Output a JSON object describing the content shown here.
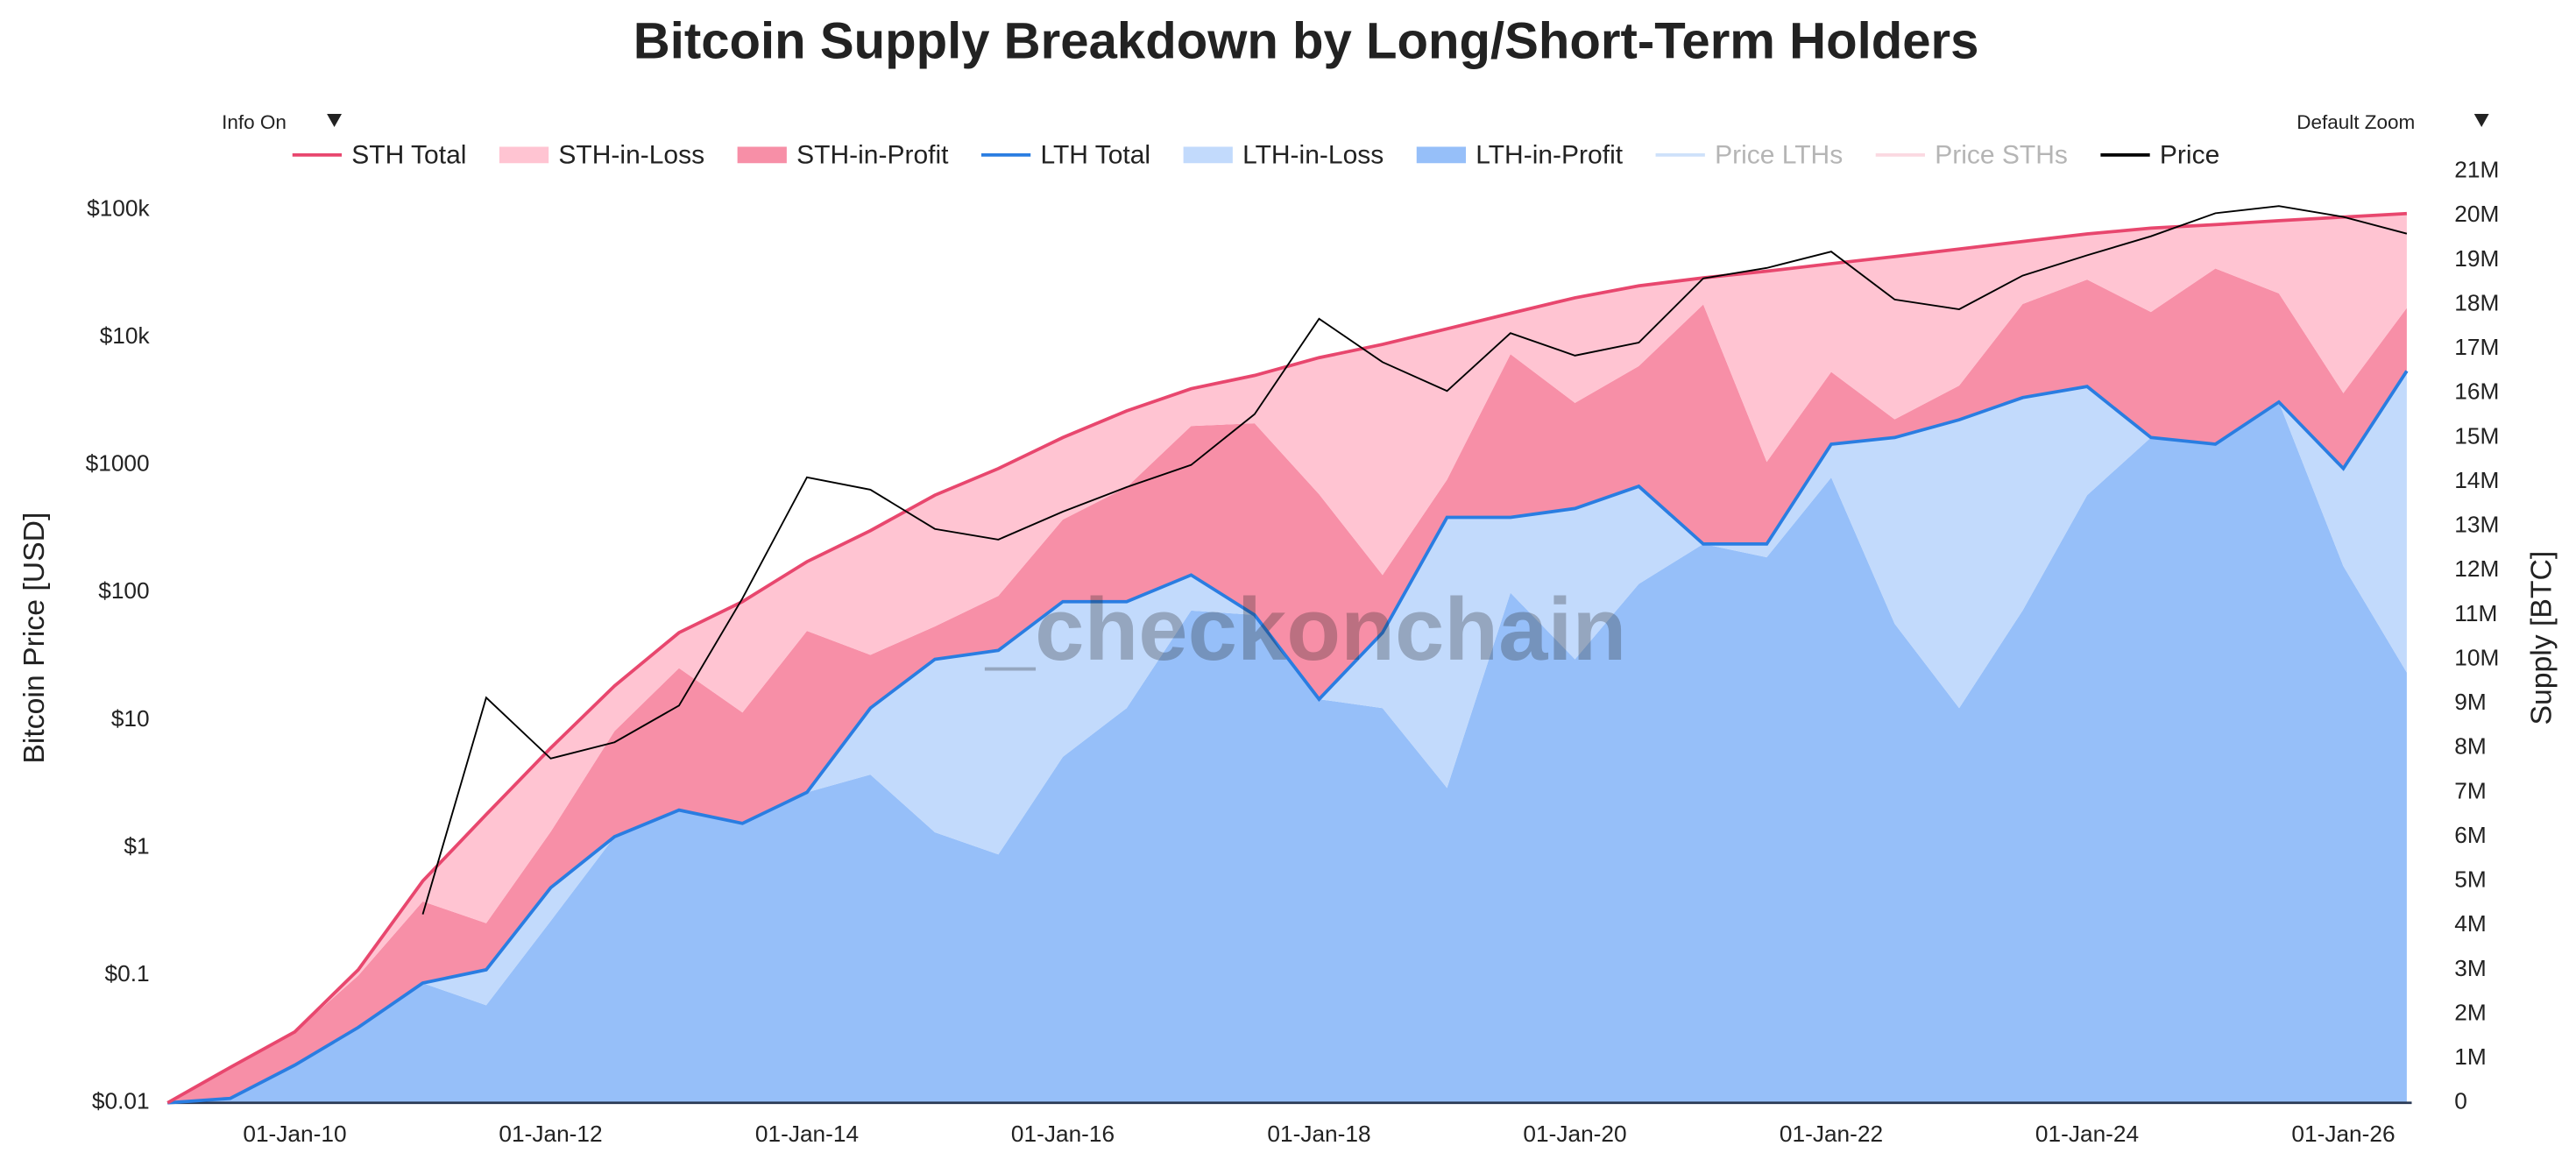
{
  "chart_data": {
    "type": "stacked-area",
    "title": "Bitcoin Supply Breakdown by Long/Short-Term Holders",
    "y_label": "Bitcoin Price [USD]",
    "y2_label": "Supply [BTC]",
    "watermark": "_checkonchain",
    "controls": {
      "info": "Info On",
      "zoom": "Default Zoom"
    },
    "x": [
      "2009-01-03",
      "2009-07-01",
      "2010-01-01",
      "2010-07-01",
      "2011-01-01",
      "2011-07-01",
      "2012-01-01",
      "2012-07-01",
      "2013-01-01",
      "2013-07-01",
      "2014-01-01",
      "2014-07-01",
      "2015-01-01",
      "2015-07-01",
      "2016-01-01",
      "2016-07-01",
      "2017-01-01",
      "2017-07-01",
      "2018-01-01",
      "2018-07-01",
      "2019-01-01",
      "2019-07-01",
      "2020-01-01",
      "2020-07-01",
      "2021-01-01",
      "2021-07-01",
      "2022-01-01",
      "2022-07-01",
      "2023-01-01",
      "2023-07-01",
      "2024-01-01",
      "2024-07-01",
      "2025-01-01",
      "2025-07-01",
      "2026-01-01",
      "2026-07-01"
    ],
    "xlim": [
      "2009-01-03",
      "2026-07-15"
    ],
    "xticks": [
      {
        "value": "2010-01-01",
        "label": "01-Jan-10"
      },
      {
        "value": "2012-01-01",
        "label": "01-Jan-12"
      },
      {
        "value": "2014-01-01",
        "label": "01-Jan-14"
      },
      {
        "value": "2016-01-01",
        "label": "01-Jan-16"
      },
      {
        "value": "2018-01-01",
        "label": "01-Jan-18"
      },
      {
        "value": "2020-01-01",
        "label": "01-Jan-20"
      },
      {
        "value": "2022-01-01",
        "label": "01-Jan-22"
      },
      {
        "value": "2024-01-01",
        "label": "01-Jan-24"
      },
      {
        "value": "2026-01-01",
        "label": "01-Jan-26"
      }
    ],
    "ylog": true,
    "ylim": [
      0.01,
      200000
    ],
    "yticks": [
      {
        "value": 0.01,
        "label": "$0.01"
      },
      {
        "value": 0.1,
        "label": "$0.1"
      },
      {
        "value": 1,
        "label": "$1"
      },
      {
        "value": 10,
        "label": "$10"
      },
      {
        "value": 100,
        "label": "$100"
      },
      {
        "value": 1000,
        "label": "$1000"
      },
      {
        "value": 10000,
        "label": "$10k"
      },
      {
        "value": 100000,
        "label": "$100k"
      }
    ],
    "y2lim": [
      0,
      21000000
    ],
    "y2ticks": [
      0,
      {
        "value": 1000000,
        "label": "1M"
      },
      {
        "value": 2000000,
        "label": "2M"
      },
      {
        "value": 3000000,
        "label": "3M"
      },
      {
        "value": 4000000,
        "label": "4M"
      },
      {
        "value": 5000000,
        "label": "5M"
      },
      {
        "value": 6000000,
        "label": "6M"
      },
      {
        "value": 7000000,
        "label": "7M"
      },
      {
        "value": 8000000,
        "label": "8M"
      },
      {
        "value": 9000000,
        "label": "9M"
      },
      {
        "value": 10000000,
        "label": "10M"
      },
      {
        "value": 11000000,
        "label": "11M"
      },
      {
        "value": 12000000,
        "label": "12M"
      },
      {
        "value": 13000000,
        "label": "13M"
      },
      {
        "value": 14000000,
        "label": "14M"
      },
      {
        "value": 15000000,
        "label": "15M"
      },
      {
        "value": 16000000,
        "label": "16M"
      },
      {
        "value": 17000000,
        "label": "17M"
      },
      {
        "value": 18000000,
        "label": "18M"
      },
      {
        "value": 19000000,
        "label": "19M"
      },
      {
        "value": 20000000,
        "label": "20M"
      },
      {
        "value": 21000000,
        "label": "21M"
      }
    ],
    "legend": "top",
    "series": [
      {
        "name": "STH Total",
        "kind": "line",
        "axis": "y2",
        "color": "#e8476e",
        "values": [
          0,
          700000,
          750000,
          1300000,
          2300000,
          3500000,
          3150000,
          3400000,
          4000000,
          5000000,
          5200000,
          4000000,
          3700000,
          4100000,
          3700000,
          4300000,
          4200000,
          5400000,
          7700000,
          6500000,
          4250000,
          4600000,
          4750000,
          4520000,
          6000000,
          6150000,
          4070000,
          4080000,
          3850000,
          3520000,
          3440000,
          4720000,
          4950000,
          4090000,
          5670000,
          3550000
        ]
      },
      {
        "name": "STH-in-Loss",
        "kind": "area",
        "axis": "y2",
        "color": "#ffc4d2",
        "values": [
          0,
          0,
          0,
          130000,
          460000,
          2450000,
          1890000,
          1020000,
          800000,
          2500000,
          1560000,
          2800000,
          2960000,
          2870000,
          1850000,
          1720000,
          840000,
          1080000,
          3080000,
          5200000,
          3400000,
          920000,
          2370000,
          1810000,
          600000,
          4300000,
          2440000,
          3670000,
          3080000,
          1410000,
          1030000,
          1890000,
          990000,
          1640000,
          3970000,
          2130000
        ]
      },
      {
        "name": "STH-in-Profit",
        "kind": "area",
        "axis": "y2",
        "color": "#f78fa7",
        "values": [
          0,
          700000,
          750000,
          1170000,
          1840000,
          1050000,
          1260000,
          2380000,
          3200000,
          2500000,
          3640000,
          1200000,
          740000,
          1230000,
          1850000,
          2580000,
          3360000,
          4320000,
          4620000,
          1300000,
          850000,
          3680000,
          2380000,
          2710000,
          5400000,
          1850000,
          1630000,
          410000,
          770000,
          2110000,
          2410000,
          2830000,
          3960000,
          2450000,
          1700000,
          1420000
        ]
      },
      {
        "name": "LTH Total",
        "kind": "line",
        "axis": "y2",
        "color": "#2a7de1",
        "values": [
          0,
          100000,
          850000,
          1700000,
          2700000,
          3000000,
          4850000,
          6000000,
          6600000,
          6300000,
          7000000,
          8900000,
          10000000,
          10200000,
          11300000,
          11300000,
          11900000,
          11000000,
          9100000,
          10600000,
          13200000,
          13200000,
          13400000,
          13900000,
          12600000,
          12600000,
          14850000,
          15000000,
          15400000,
          15900000,
          16150000,
          15000000,
          14850000,
          15800000,
          14300000,
          16500000
        ]
      },
      {
        "name": "LTH-in-Loss",
        "kind": "area",
        "axis": "y2",
        "color": "#c2dafc",
        "values": [
          0,
          0,
          0,
          0,
          0,
          800000,
          750000,
          0,
          0,
          0,
          0,
          1500000,
          3900000,
          4600000,
          3500000,
          2400000,
          800000,
          0,
          0,
          1700000,
          6100000,
          1700000,
          3400000,
          2200000,
          0,
          300000,
          750000,
          4200000,
          6500000,
          4800000,
          2450000,
          0,
          0,
          0,
          2200000,
          6800000
        ]
      },
      {
        "name": "LTH-in-Profit",
        "kind": "area",
        "axis": "y2",
        "color": "#96bff9",
        "values": [
          0,
          100000,
          850000,
          1700000,
          2700000,
          2200000,
          4100000,
          6000000,
          6600000,
          6300000,
          7000000,
          7400000,
          6100000,
          5600000,
          7800000,
          8900000,
          11100000,
          11000000,
          9100000,
          8900000,
          7100000,
          11500000,
          10000000,
          11700000,
          12600000,
          12300000,
          14100000,
          10800000,
          8900000,
          11100000,
          13700000,
          15000000,
          14850000,
          15800000,
          12100000,
          9700000
        ]
      },
      {
        "name": "Price LTHs",
        "kind": "line",
        "color": "#9ec3f5",
        "visible": false
      },
      {
        "name": "Price STHs",
        "kind": "line",
        "color": "#f7b3c3",
        "visible": false
      },
      {
        "name": "Price",
        "kind": "line",
        "color": "#000000",
        "values": [
          null,
          null,
          null,
          null,
          0.3,
          15,
          5,
          6.7,
          13,
          90,
          800,
          640,
          315,
          260,
          430,
          670,
          1000,
          2500,
          14000,
          6400,
          3800,
          10800,
          7200,
          9100,
          29000,
          35000,
          47000,
          19800,
          16600,
          30500,
          44000,
          62000,
          94000,
          107000,
          88000,
          65000
        ]
      }
    ]
  }
}
